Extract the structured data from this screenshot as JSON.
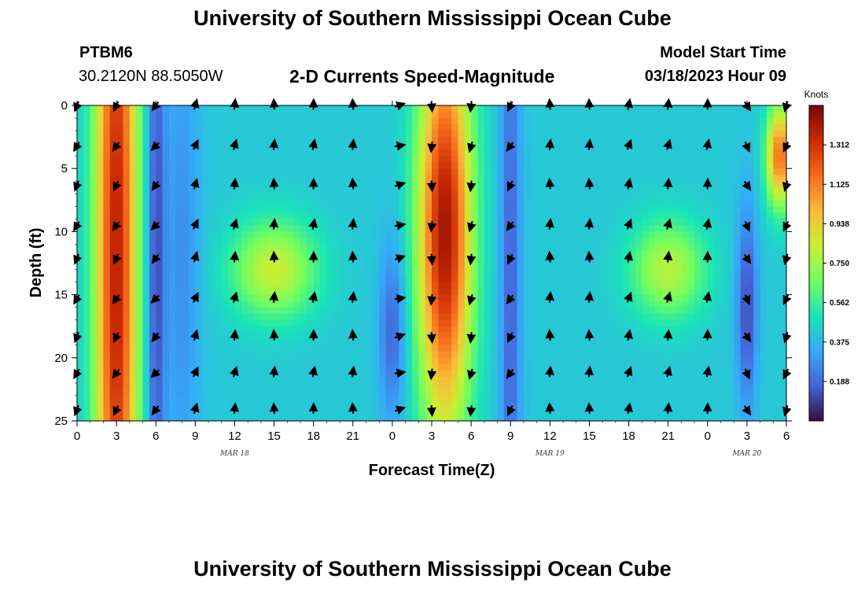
{
  "page": {
    "title_top": "University of Southern Mississippi Ocean Cube",
    "title_bottom": "University of Southern Mississippi Ocean Cube",
    "station": "PTBM6",
    "coordinates": "30.2120N  88.5050W",
    "model_start_label": "Model Start Time",
    "model_start_time": "03/18/2023 Hour 09"
  },
  "chart_data": {
    "type": "heatmap",
    "title": "2-D Currents Speed-Magnitude",
    "xlabel": "Forecast Time(Z)",
    "ylabel": "Depth (ft)",
    "x_ticks": [
      "0",
      "3",
      "6",
      "9",
      "12",
      "15",
      "18",
      "21",
      "0",
      "3",
      "6",
      "9",
      "12",
      "15",
      "18",
      "21",
      "0",
      "3",
      "6"
    ],
    "x_range_hours": [
      0,
      54
    ],
    "date_labels": [
      {
        "text": "MAR 18",
        "at_hour": 12
      },
      {
        "text": "MAR 19",
        "at_hour": 36
      },
      {
        "text": "MAR 20",
        "at_hour": 51
      }
    ],
    "y_ticks": [
      "0",
      "5",
      "10",
      "15",
      "20",
      "25"
    ],
    "ylim": [
      25,
      0
    ],
    "colorbar": {
      "title": "Knots",
      "min": 0,
      "max": 1.5,
      "labels": [
        "1.312",
        "1.125",
        "0.938",
        "0.750",
        "0.562",
        "0.375",
        "0.188"
      ],
      "colors": [
        "#30123b",
        "#4662d7",
        "#36aaf9",
        "#1ae4b6",
        "#72fe5e",
        "#c8ef34",
        "#faba39",
        "#f66b19",
        "#ca2a04",
        "#7a0403"
      ]
    },
    "arrow_depths_ft": [
      0,
      3.2,
      6.3,
      9.5,
      12.1,
      15.3,
      18.3,
      21.2,
      24.1
    ],
    "arrow_columns": [
      {
        "hour": 0,
        "deg": 205
      },
      {
        "hour": 3,
        "deg": 210
      },
      {
        "hour": 6,
        "deg": 220
      },
      {
        "hour": 9,
        "deg": 20
      },
      {
        "hour": 12,
        "deg": 10
      },
      {
        "hour": 15,
        "deg": 0
      },
      {
        "hour": 18,
        "deg": 5
      },
      {
        "hour": 21,
        "deg": 0
      },
      {
        "hour": 24.5,
        "deg": 75
      },
      {
        "hour": 27,
        "deg": 180
      },
      {
        "hour": 30,
        "deg": 190
      },
      {
        "hour": 33,
        "deg": 210
      },
      {
        "hour": 36,
        "deg": 0
      },
      {
        "hour": 39,
        "deg": 0
      },
      {
        "hour": 42,
        "deg": 15
      },
      {
        "hour": 45,
        "deg": 10
      },
      {
        "hour": 48,
        "deg": 5
      },
      {
        "hour": 51,
        "deg": 150
      },
      {
        "hour": 54,
        "deg": 200
      }
    ],
    "speed_field": [
      {
        "comment": "background_knots",
        "value": 0.42
      },
      {
        "center_hour": 3,
        "center_depth": 12,
        "width_hours": 1.6,
        "height_ft": 40,
        "peak": 0.95
      },
      {
        "center_hour": 28,
        "center_depth": 10,
        "width_hours": 2.0,
        "height_ft": 16,
        "peak": 1.0
      },
      {
        "center_hour": 15,
        "center_depth": 13,
        "width_hours": 3.2,
        "height_ft": 3.8,
        "peak": 0.42
      },
      {
        "center_hour": 45,
        "center_depth": 13,
        "width_hours": 2.8,
        "height_ft": 3.8,
        "peak": 0.38
      },
      {
        "center_hour": 53.5,
        "center_depth": 4,
        "width_hours": 1.0,
        "height_ft": 4,
        "peak": 0.75
      },
      {
        "center_hour": 6,
        "center_depth": 12,
        "width_hours": 0.7,
        "height_ft": 30,
        "peak": -0.3
      },
      {
        "center_hour": 8,
        "center_depth": 12,
        "width_hours": 1.4,
        "height_ft": 20,
        "peak": -0.15
      },
      {
        "center_hour": 24,
        "center_depth": 18,
        "width_hours": 1.0,
        "height_ft": 7,
        "peak": -0.25
      },
      {
        "center_hour": 33,
        "center_depth": 14,
        "width_hours": 0.8,
        "height_ft": 30,
        "peak": -0.25
      },
      {
        "center_hour": 51,
        "center_depth": 16,
        "width_hours": 0.8,
        "height_ft": 8,
        "peak": -0.3
      }
    ]
  }
}
